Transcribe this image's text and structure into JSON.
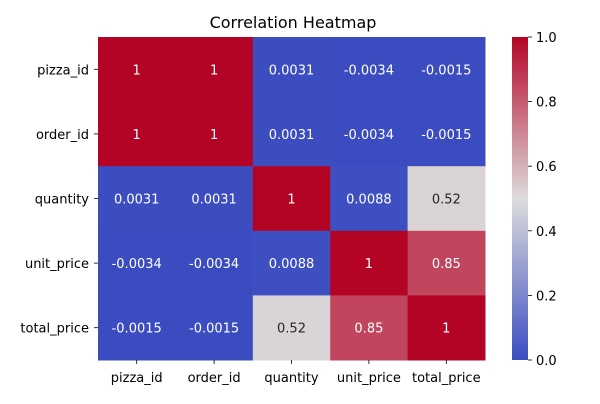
{
  "chart_data": {
    "type": "heatmap",
    "title": "Correlation Heatmap",
    "xlabel": "",
    "ylabel": "",
    "x_labels": [
      "pizza_id",
      "order_id",
      "quantity",
      "unit_price",
      "total_price"
    ],
    "y_labels": [
      "pizza_id",
      "order_id",
      "quantity",
      "unit_price",
      "total_price"
    ],
    "values": [
      [
        1,
        1,
        0.0031,
        -0.0034,
        -0.0015
      ],
      [
        1,
        1,
        0.0031,
        -0.0034,
        -0.0015
      ],
      [
        0.0031,
        0.0031,
        1,
        0.0088,
        0.52
      ],
      [
        -0.0034,
        -0.0034,
        0.0088,
        1,
        0.85
      ],
      [
        -0.0015,
        -0.0015,
        0.52,
        0.85,
        1
      ]
    ],
    "annotations": [
      [
        "1",
        "1",
        "0.0031",
        "-0.0034",
        "-0.0015"
      ],
      [
        "1",
        "1",
        "0.0031",
        "-0.0034",
        "-0.0015"
      ],
      [
        "0.0031",
        "0.0031",
        "1",
        "0.0088",
        "0.52"
      ],
      [
        "-0.0034",
        "-0.0034",
        "0.0088",
        "1",
        "0.85"
      ],
      [
        "-0.0015",
        "-0.0015",
        "0.52",
        "0.85",
        "1"
      ]
    ],
    "colormap": "coolwarm",
    "colormap_stops": [
      "#3b4cc0",
      "#dddddd",
      "#b40426"
    ],
    "vmin": 0,
    "vmax": 1,
    "colorbar_ticks": [
      "0.0",
      "0.2",
      "0.4",
      "0.6",
      "0.8",
      "1.0"
    ],
    "colorbar_tick_values": [
      0,
      0.2,
      0.4,
      0.6,
      0.8,
      1.0
    ],
    "grid": false
  }
}
